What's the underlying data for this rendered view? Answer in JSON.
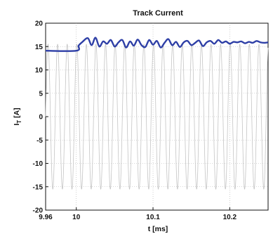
{
  "chart_data": {
    "type": "line",
    "title": "Track Current",
    "xlabel": "t [ms]",
    "ylabel": "I_T [A]",
    "ylabel_main": "I",
    "ylabel_sub": "T",
    "ylabel_unit": " [A]",
    "xlim": [
      9.96,
      10.25
    ],
    "ylim": [
      -20,
      20
    ],
    "x_ticks": [
      9.96,
      10,
      10.1,
      10.2
    ],
    "x_tick_labels": [
      "9.96",
      "10",
      "10.1",
      "10.2"
    ],
    "y_ticks": [
      20,
      15,
      10,
      5,
      0,
      -5,
      -10,
      -15,
      -20
    ],
    "y_tick_labels": [
      "20",
      "15",
      "10",
      "5",
      "0",
      "-5",
      "-10",
      "-15",
      "-20"
    ],
    "grid": true,
    "series": [
      {
        "role": "instantaneous",
        "color": "#c4c4c4",
        "amplitude": 15.5,
        "period_ms": 0.0125,
        "x_range": [
          9.96,
          10.25
        ]
      },
      {
        "role": "envelope",
        "color": "#2e3fa6",
        "x": [
          9.96,
          10.0,
          10.003,
          10.008,
          10.015,
          10.02,
          10.025,
          10.03,
          10.035,
          10.04,
          10.045,
          10.05,
          10.055,
          10.06,
          10.065,
          10.07,
          10.075,
          10.08,
          10.085,
          10.09,
          10.095,
          10.1,
          10.105,
          10.11,
          10.115,
          10.12,
          10.125,
          10.13,
          10.135,
          10.14,
          10.145,
          10.15,
          10.155,
          10.16,
          10.165,
          10.17,
          10.175,
          10.18,
          10.185,
          10.19,
          10.195,
          10.2,
          10.205,
          10.21,
          10.215,
          10.22,
          10.225,
          10.23,
          10.235,
          10.24,
          10.245,
          10.25
        ],
        "y": [
          14.1,
          14.1,
          15.2,
          16.0,
          16.8,
          15.3,
          16.9,
          15.0,
          16.1,
          15.6,
          16.4,
          15.0,
          15.9,
          16.4,
          14.8,
          16.1,
          15.2,
          16.5,
          15.3,
          14.9,
          16.4,
          15.4,
          16.2,
          14.8,
          15.8,
          16.6,
          15.3,
          16.0,
          14.9,
          15.9,
          16.2,
          15.3,
          15.8,
          16.3,
          15.1,
          15.9,
          16.2,
          15.6,
          16.4,
          15.8,
          16.1,
          15.6,
          16.0,
          15.9,
          16.1,
          15.7,
          16.0,
          15.8,
          16.2,
          15.9,
          15.8,
          15.9
        ]
      }
    ]
  }
}
